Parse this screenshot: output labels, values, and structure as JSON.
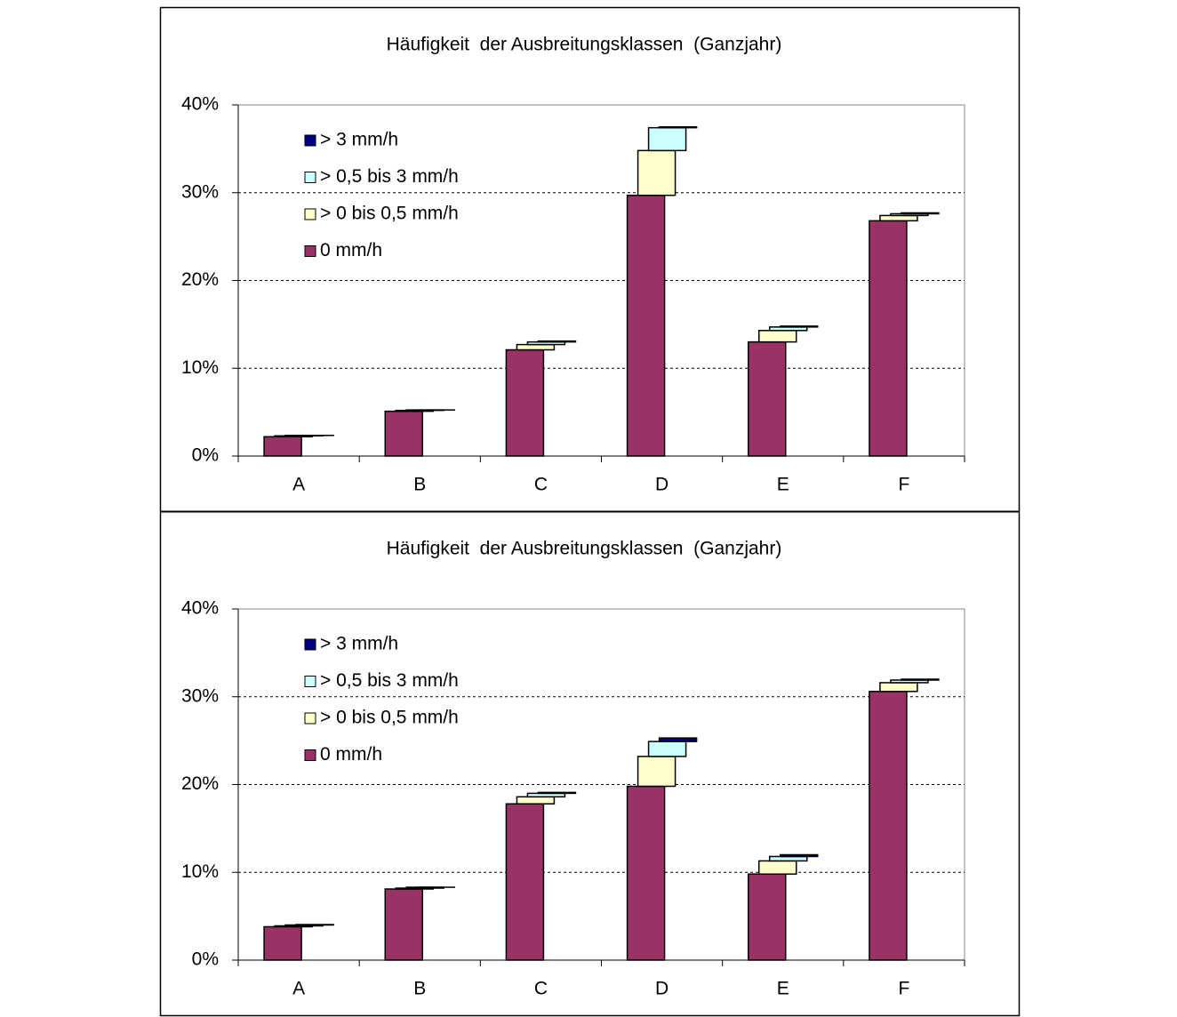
{
  "chart_data": [
    {
      "type": "bar",
      "stacking": "staircase",
      "title": "Häufigkeit  der Ausbreitungsklassen  (Ganzjahr)",
      "categories": [
        "A",
        "B",
        "C",
        "D",
        "E",
        "F"
      ],
      "series": [
        {
          "name": "0 mm/h",
          "color": "#993366",
          "values": [
            2.2,
            5.1,
            12.1,
            29.7,
            13.0,
            26.8
          ]
        },
        {
          "name": "> 0 bis 0,5 mm/h",
          "color": "#ffffcc",
          "values": [
            0.1,
            0.1,
            0.6,
            5.1,
            1.3,
            0.6
          ]
        },
        {
          "name": "> 0,5 bis 3 mm/h",
          "color": "#ccffff",
          "values": [
            0.05,
            0.05,
            0.3,
            2.6,
            0.4,
            0.2
          ]
        },
        {
          "name": "> 3 mm/h",
          "color": "#000080",
          "values": [
            0.0,
            0.0,
            0.1,
            0.1,
            0.1,
            0.1
          ]
        }
      ],
      "ylim": [
        0,
        40
      ],
      "yticks": [
        {
          "value": 0,
          "label": "0%"
        },
        {
          "value": 10,
          "label": "10%"
        },
        {
          "value": 20,
          "label": "20%"
        },
        {
          "value": 30,
          "label": "30%"
        },
        {
          "value": 40,
          "label": "40%"
        }
      ],
      "grid": true,
      "legend": "upper left"
    },
    {
      "type": "bar",
      "stacking": "staircase",
      "title": "Häufigkeit  der Ausbreitungsklassen  (Ganzjahr)",
      "categories": [
        "A",
        "B",
        "C",
        "D",
        "E",
        "F"
      ],
      "series": [
        {
          "name": "0 mm/h",
          "color": "#993366",
          "values": [
            3.8,
            8.1,
            17.8,
            19.8,
            9.8,
            30.6
          ]
        },
        {
          "name": "> 0 bis 0,5 mm/h",
          "color": "#ffffcc",
          "values": [
            0.1,
            0.1,
            0.8,
            3.4,
            1.5,
            1.0
          ]
        },
        {
          "name": "> 0,5 bis 3 mm/h",
          "color": "#ccffff",
          "values": [
            0.1,
            0.1,
            0.4,
            1.7,
            0.5,
            0.3
          ]
        },
        {
          "name": "> 3 mm/h",
          "color": "#000080",
          "values": [
            0.05,
            0.0,
            0.1,
            0.4,
            0.2,
            0.1
          ]
        }
      ],
      "ylim": [
        0,
        40
      ],
      "yticks": [
        {
          "value": 0,
          "label": "0%"
        },
        {
          "value": 10,
          "label": "10%"
        },
        {
          "value": 20,
          "label": "20%"
        },
        {
          "value": 30,
          "label": "30%"
        },
        {
          "value": 40,
          "label": "40%"
        }
      ],
      "grid": true,
      "legend": "upper left"
    }
  ]
}
